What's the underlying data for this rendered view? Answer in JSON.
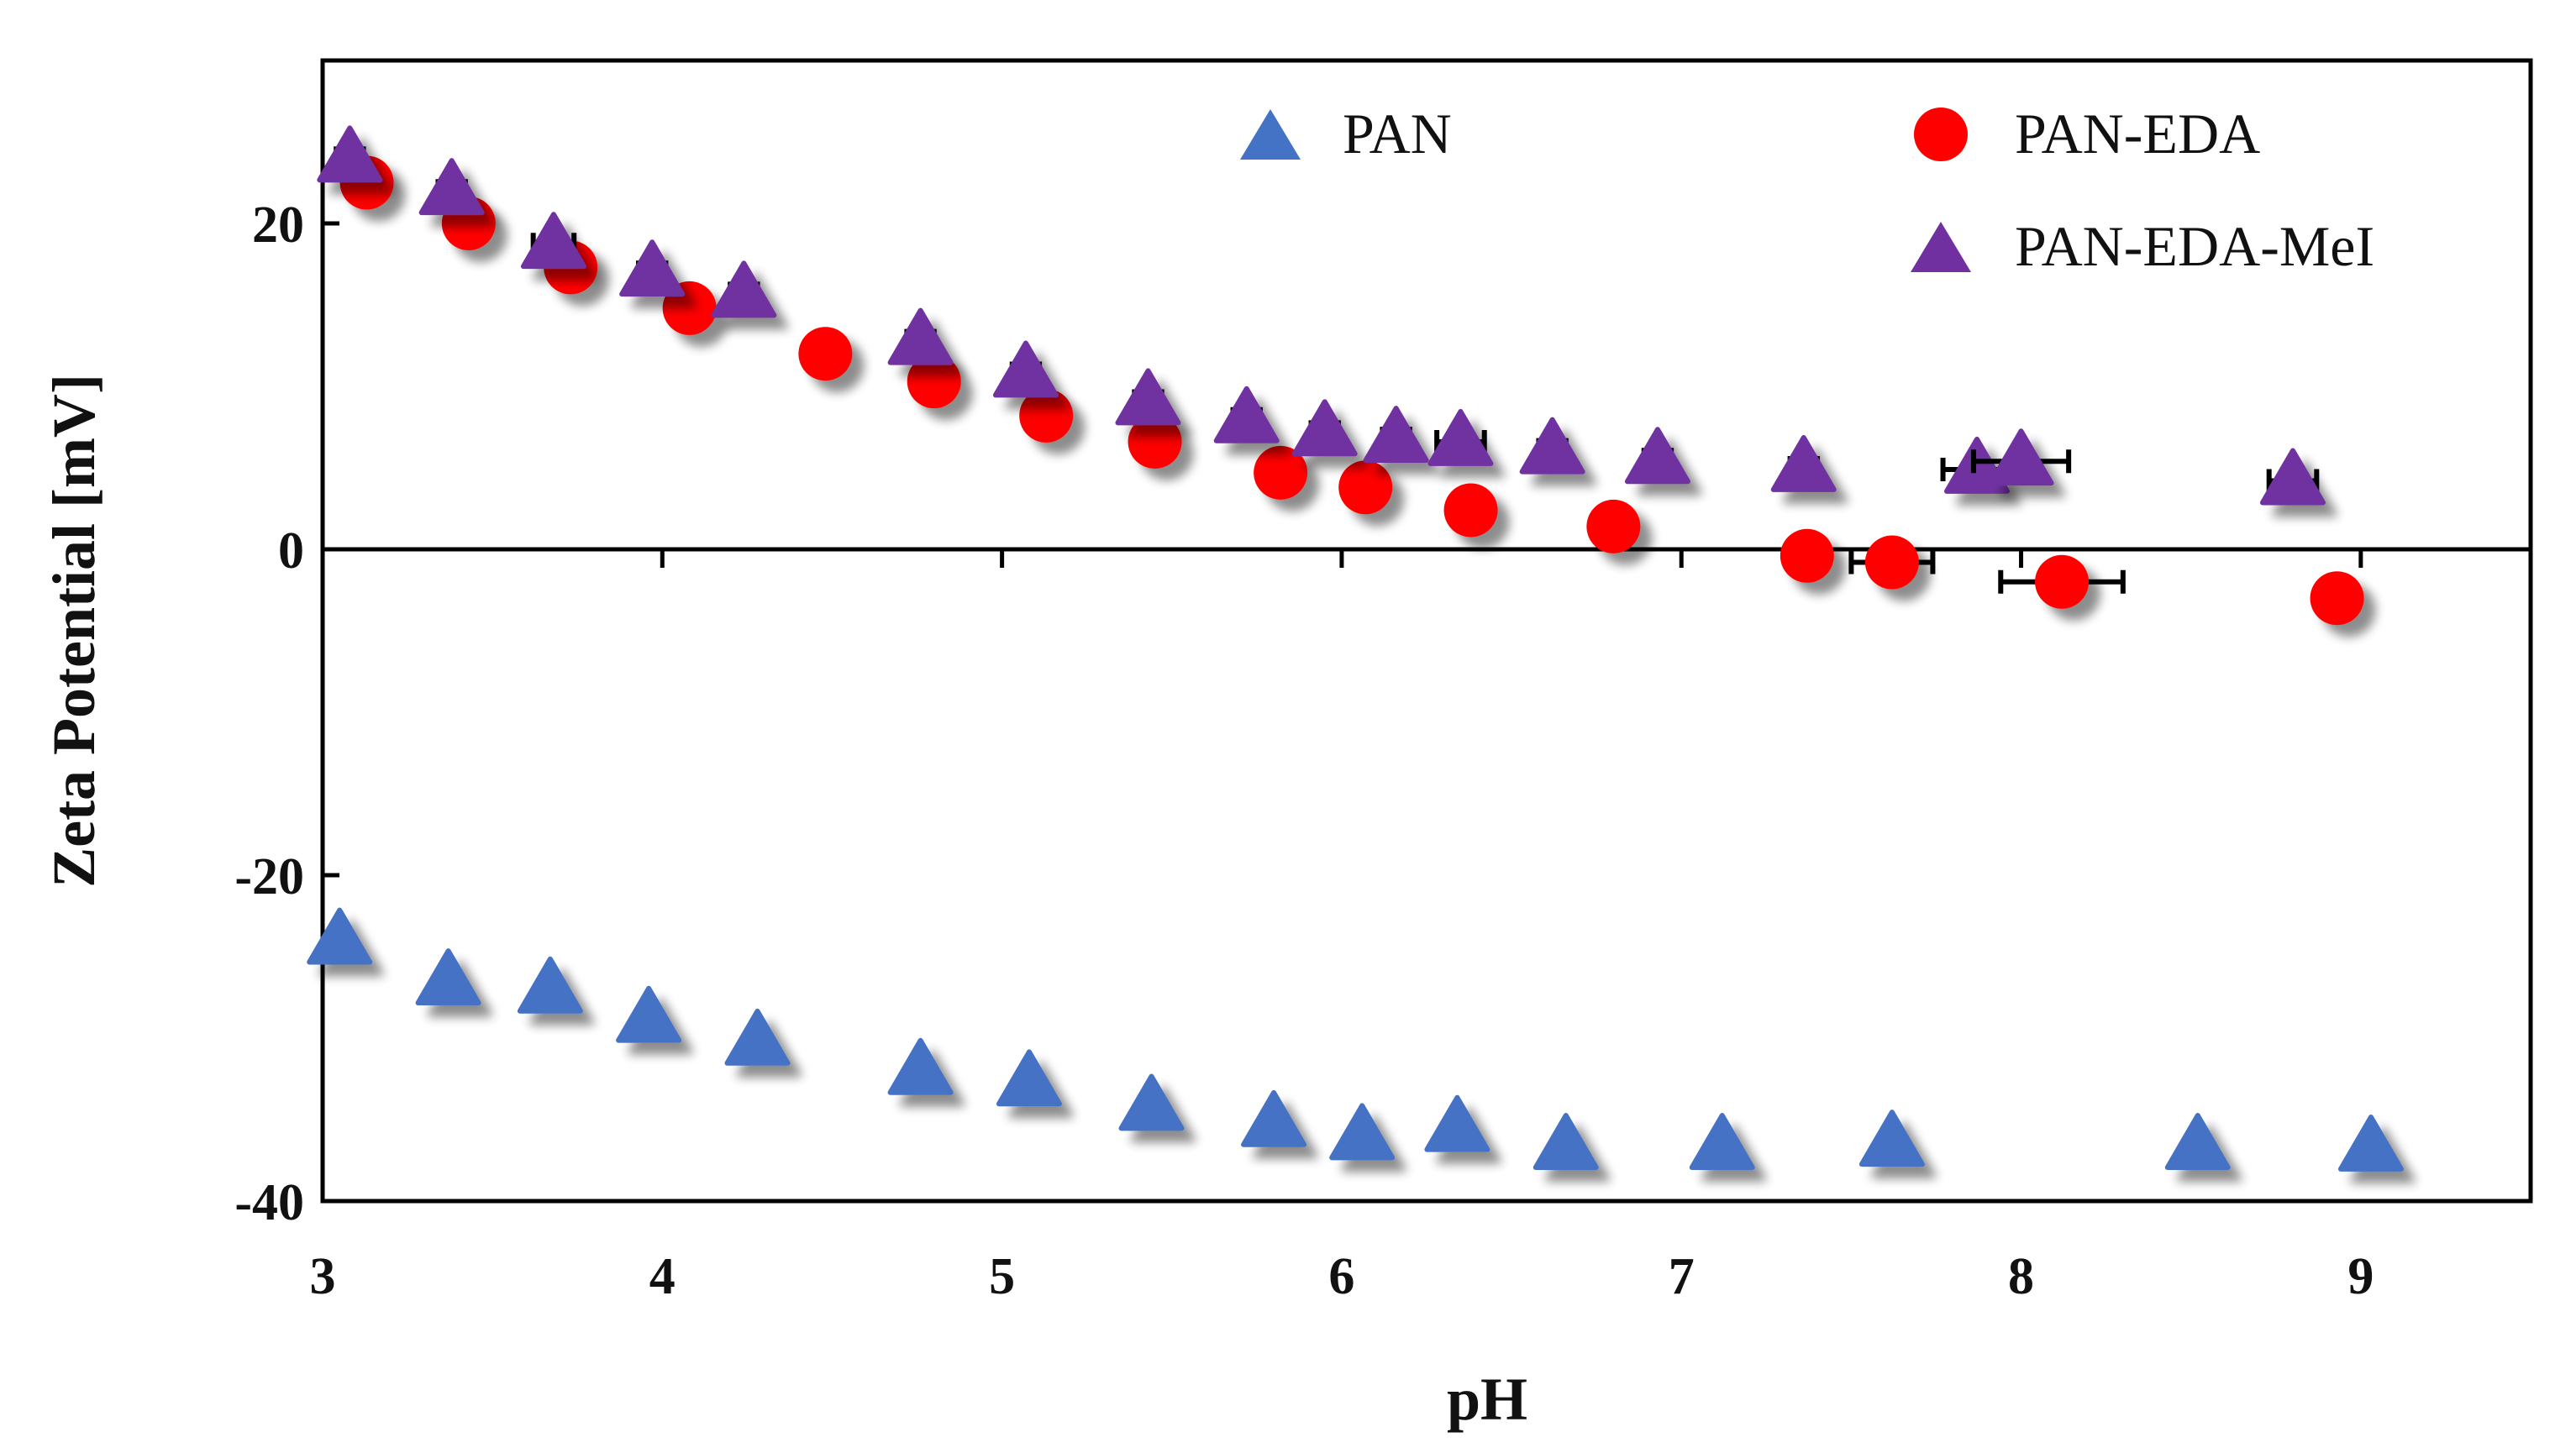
{
  "chart_data": {
    "type": "scatter",
    "title": "",
    "xlabel": "pH",
    "ylabel": "Zeta Potential [mV]",
    "xlim": [
      3,
      9.5
    ],
    "ylim": [
      -40,
      30
    ],
    "xticks": [
      3,
      4,
      5,
      6,
      7,
      8,
      9
    ],
    "yticks": [
      -40,
      -20,
      0,
      20
    ],
    "x_tick_labels": [
      "3",
      "4",
      "5",
      "6",
      "7",
      "8",
      "9"
    ],
    "y_tick_labels": [
      "-40",
      "-20",
      "0",
      "20"
    ],
    "zero_line": true,
    "grid": false,
    "legend": "top",
    "series": [
      {
        "name": "PAN",
        "marker": "triangle",
        "color": "#4472C4",
        "points": [
          {
            "x": 3.05,
            "y": -24
          },
          {
            "x": 3.37,
            "y": -26.5
          },
          {
            "x": 3.67,
            "y": -27
          },
          {
            "x": 3.96,
            "y": -28.8
          },
          {
            "x": 4.28,
            "y": -30.2
          },
          {
            "x": 4.76,
            "y": -32
          },
          {
            "x": 5.08,
            "y": -32.7
          },
          {
            "x": 5.44,
            "y": -34.2
          },
          {
            "x": 5.8,
            "y": -35.2
          },
          {
            "x": 6.06,
            "y": -36
          },
          {
            "x": 6.34,
            "y": -35.5
          },
          {
            "x": 6.66,
            "y": -36.6
          },
          {
            "x": 7.12,
            "y": -36.6
          },
          {
            "x": 7.62,
            "y": -36.4
          },
          {
            "x": 8.52,
            "y": -36.6
          },
          {
            "x": 9.03,
            "y": -36.7
          }
        ]
      },
      {
        "name": "PAN-EDA",
        "marker": "circle",
        "color": "#FF0000",
        "points": [
          {
            "x": 3.13,
            "y": 22.5,
            "xerr": 0.04
          },
          {
            "x": 3.43,
            "y": 20,
            "xerr": 0.04
          },
          {
            "x": 3.73,
            "y": 17.3,
            "xerr": 0.04
          },
          {
            "x": 4.08,
            "y": 14.8,
            "xerr": 0.04
          },
          {
            "x": 4.48,
            "y": 12,
            "xerr": 0.03
          },
          {
            "x": 4.8,
            "y": 10.3,
            "xerr": 0.04
          },
          {
            "x": 5.13,
            "y": 8.2,
            "xerr": 0.04
          },
          {
            "x": 5.45,
            "y": 6.6,
            "xerr": 0.04
          },
          {
            "x": 5.82,
            "y": 4.7,
            "xerr": 0.04
          },
          {
            "x": 6.07,
            "y": 3.8,
            "xerr": 0.04
          },
          {
            "x": 6.38,
            "y": 2.4,
            "xerr": 0.04
          },
          {
            "x": 6.8,
            "y": 1.4,
            "xerr": 0.04
          },
          {
            "x": 7.37,
            "y": -0.4,
            "xerr": 0.06
          },
          {
            "x": 7.62,
            "y": -0.8,
            "xerr": 0.12
          },
          {
            "x": 8.12,
            "y": -2,
            "xerr": 0.18
          },
          {
            "x": 8.93,
            "y": -3,
            "xerr": 0.04
          }
        ]
      },
      {
        "name": "PAN-EDA-MeI",
        "marker": "triangle",
        "color": "#7030A0",
        "points": [
          {
            "x": 3.08,
            "y": 24,
            "xerr": 0.04
          },
          {
            "x": 3.38,
            "y": 22,
            "xerr": 0.04
          },
          {
            "x": 3.68,
            "y": 18.7,
            "xerr": 0.06
          },
          {
            "x": 3.97,
            "y": 17,
            "xerr": 0.04
          },
          {
            "x": 4.24,
            "y": 15.7,
            "xerr": 0.04
          },
          {
            "x": 4.76,
            "y": 12.8,
            "xerr": 0.04
          },
          {
            "x": 5.07,
            "y": 10.8,
            "xerr": 0.04
          },
          {
            "x": 5.43,
            "y": 9.1,
            "xerr": 0.04
          },
          {
            "x": 5.72,
            "y": 8,
            "xerr": 0.04
          },
          {
            "x": 5.95,
            "y": 7.2,
            "xerr": 0.04
          },
          {
            "x": 6.16,
            "y": 6.8,
            "xerr": 0.04
          },
          {
            "x": 6.35,
            "y": 6.6,
            "xerr": 0.07
          },
          {
            "x": 6.62,
            "y": 6.1,
            "xerr": 0.04
          },
          {
            "x": 6.93,
            "y": 5.5,
            "xerr": 0.04
          },
          {
            "x": 7.36,
            "y": 5,
            "xerr": 0.04
          },
          {
            "x": 7.87,
            "y": 4.9,
            "xerr": 0.1
          },
          {
            "x": 8.0,
            "y": 5.4,
            "xerr": 0.14
          },
          {
            "x": 8.8,
            "y": 4.2,
            "xerr": 0.07
          }
        ]
      }
    ]
  }
}
